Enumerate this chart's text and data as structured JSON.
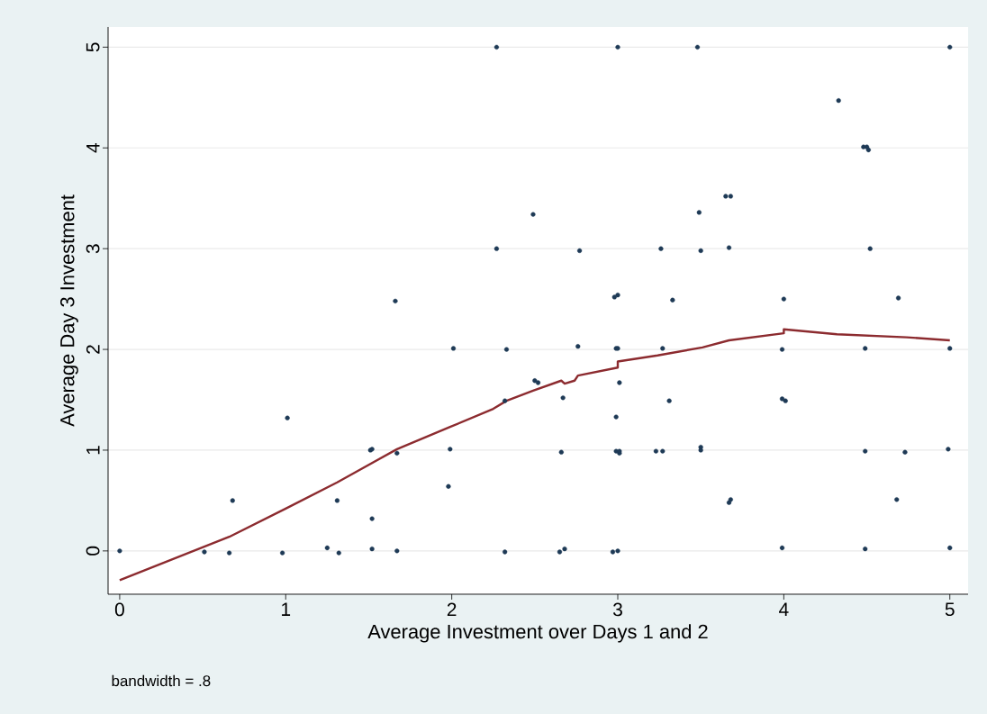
{
  "chart_data": {
    "type": "scatter",
    "xlabel": "Average Investment over Days 1 and 2",
    "ylabel": "Average Day 3 Investment",
    "annotations": [
      "bandwidth = .8"
    ],
    "xlim": [
      -0.07,
      5.11
    ],
    "ylim": [
      -0.43,
      5.2
    ],
    "xticks": [
      0,
      1,
      2,
      3,
      4,
      5
    ],
    "yticks": [
      0,
      1,
      2,
      3,
      4,
      5
    ],
    "grid": "y",
    "marker": "circle",
    "series": [
      {
        "color": "#1e3a56",
        "x": [
          0,
          0.51,
          0.66,
          0.68,
          0.98,
          1.01,
          1.25,
          1.31,
          1.32,
          1.51,
          1.52,
          1.52,
          1.52,
          1.66,
          1.67,
          1.67,
          1.98,
          1.99,
          2.01,
          2.27,
          2.27,
          2.32,
          2.32,
          2.33,
          2.49,
          2.5,
          2.52,
          2.65,
          2.66,
          2.67,
          2.68,
          2.76,
          2.77,
          2.97,
          2.98,
          2.99,
          2.99,
          2.99,
          3.0,
          3.0,
          3.0,
          3.0,
          3.01,
          3.01,
          3.01,
          3.23,
          3.26,
          3.27,
          3.27,
          3.31,
          3.33,
          3.48,
          3.49,
          3.5,
          3.5,
          3.5,
          3.65,
          3.67,
          3.67,
          3.68,
          3.68,
          3.99,
          3.99,
          3.99,
          4.0,
          4.01,
          4.33,
          4.48,
          4.49,
          4.49,
          4.49,
          4.5,
          4.51,
          4.52,
          4.68,
          4.69,
          4.73,
          4.99,
          5.0,
          5.0,
          5.0
        ],
        "values": [
          0,
          -0.01,
          -0.02,
          0.5,
          -0.02,
          1.32,
          0.03,
          0.5,
          -0.02,
          1.0,
          1.01,
          0.32,
          0.02,
          2.48,
          0.97,
          0,
          0.64,
          1.01,
          2.01,
          5,
          3.0,
          1.49,
          -0.01,
          2.0,
          3.34,
          1.69,
          1.67,
          -0.01,
          0.98,
          1.52,
          0.02,
          2.03,
          2.98,
          -0.01,
          2.52,
          1.33,
          0.99,
          2.01,
          2.54,
          2.01,
          0,
          5,
          1.67,
          0.97,
          0.99,
          0.99,
          3.0,
          0.99,
          2.01,
          1.49,
          2.49,
          5,
          3.36,
          2.98,
          1.03,
          1.0,
          3.52,
          3.01,
          0.48,
          3.52,
          0.51,
          2.0,
          1.51,
          0.03,
          2.5,
          1.49,
          4.47,
          4.01,
          2.01,
          0.99,
          0.02,
          4.01,
          3.98,
          3.0,
          0.51,
          2.51,
          0.98,
          1.01,
          5,
          2.01,
          0.03
        ]
      },
      {
        "type": "line",
        "color": "#8c2b2f",
        "marker": "none",
        "x": [
          0,
          0.66,
          1.0,
          1.31,
          1.67,
          1.99,
          2.25,
          2.33,
          2.49,
          2.66,
          2.68,
          2.74,
          2.76,
          3.0,
          3.0,
          3.24,
          3.51,
          3.67,
          4.0,
          4.0,
          4.32,
          4.74,
          5.0
        ],
        "values": [
          -0.29,
          0.14,
          0.42,
          0.68,
          1.01,
          1.23,
          1.41,
          1.49,
          1.59,
          1.69,
          1.66,
          1.69,
          1.74,
          1.82,
          1.88,
          1.94,
          2.02,
          2.09,
          2.16,
          2.2,
          2.15,
          2.12,
          2.09
        ]
      }
    ]
  }
}
